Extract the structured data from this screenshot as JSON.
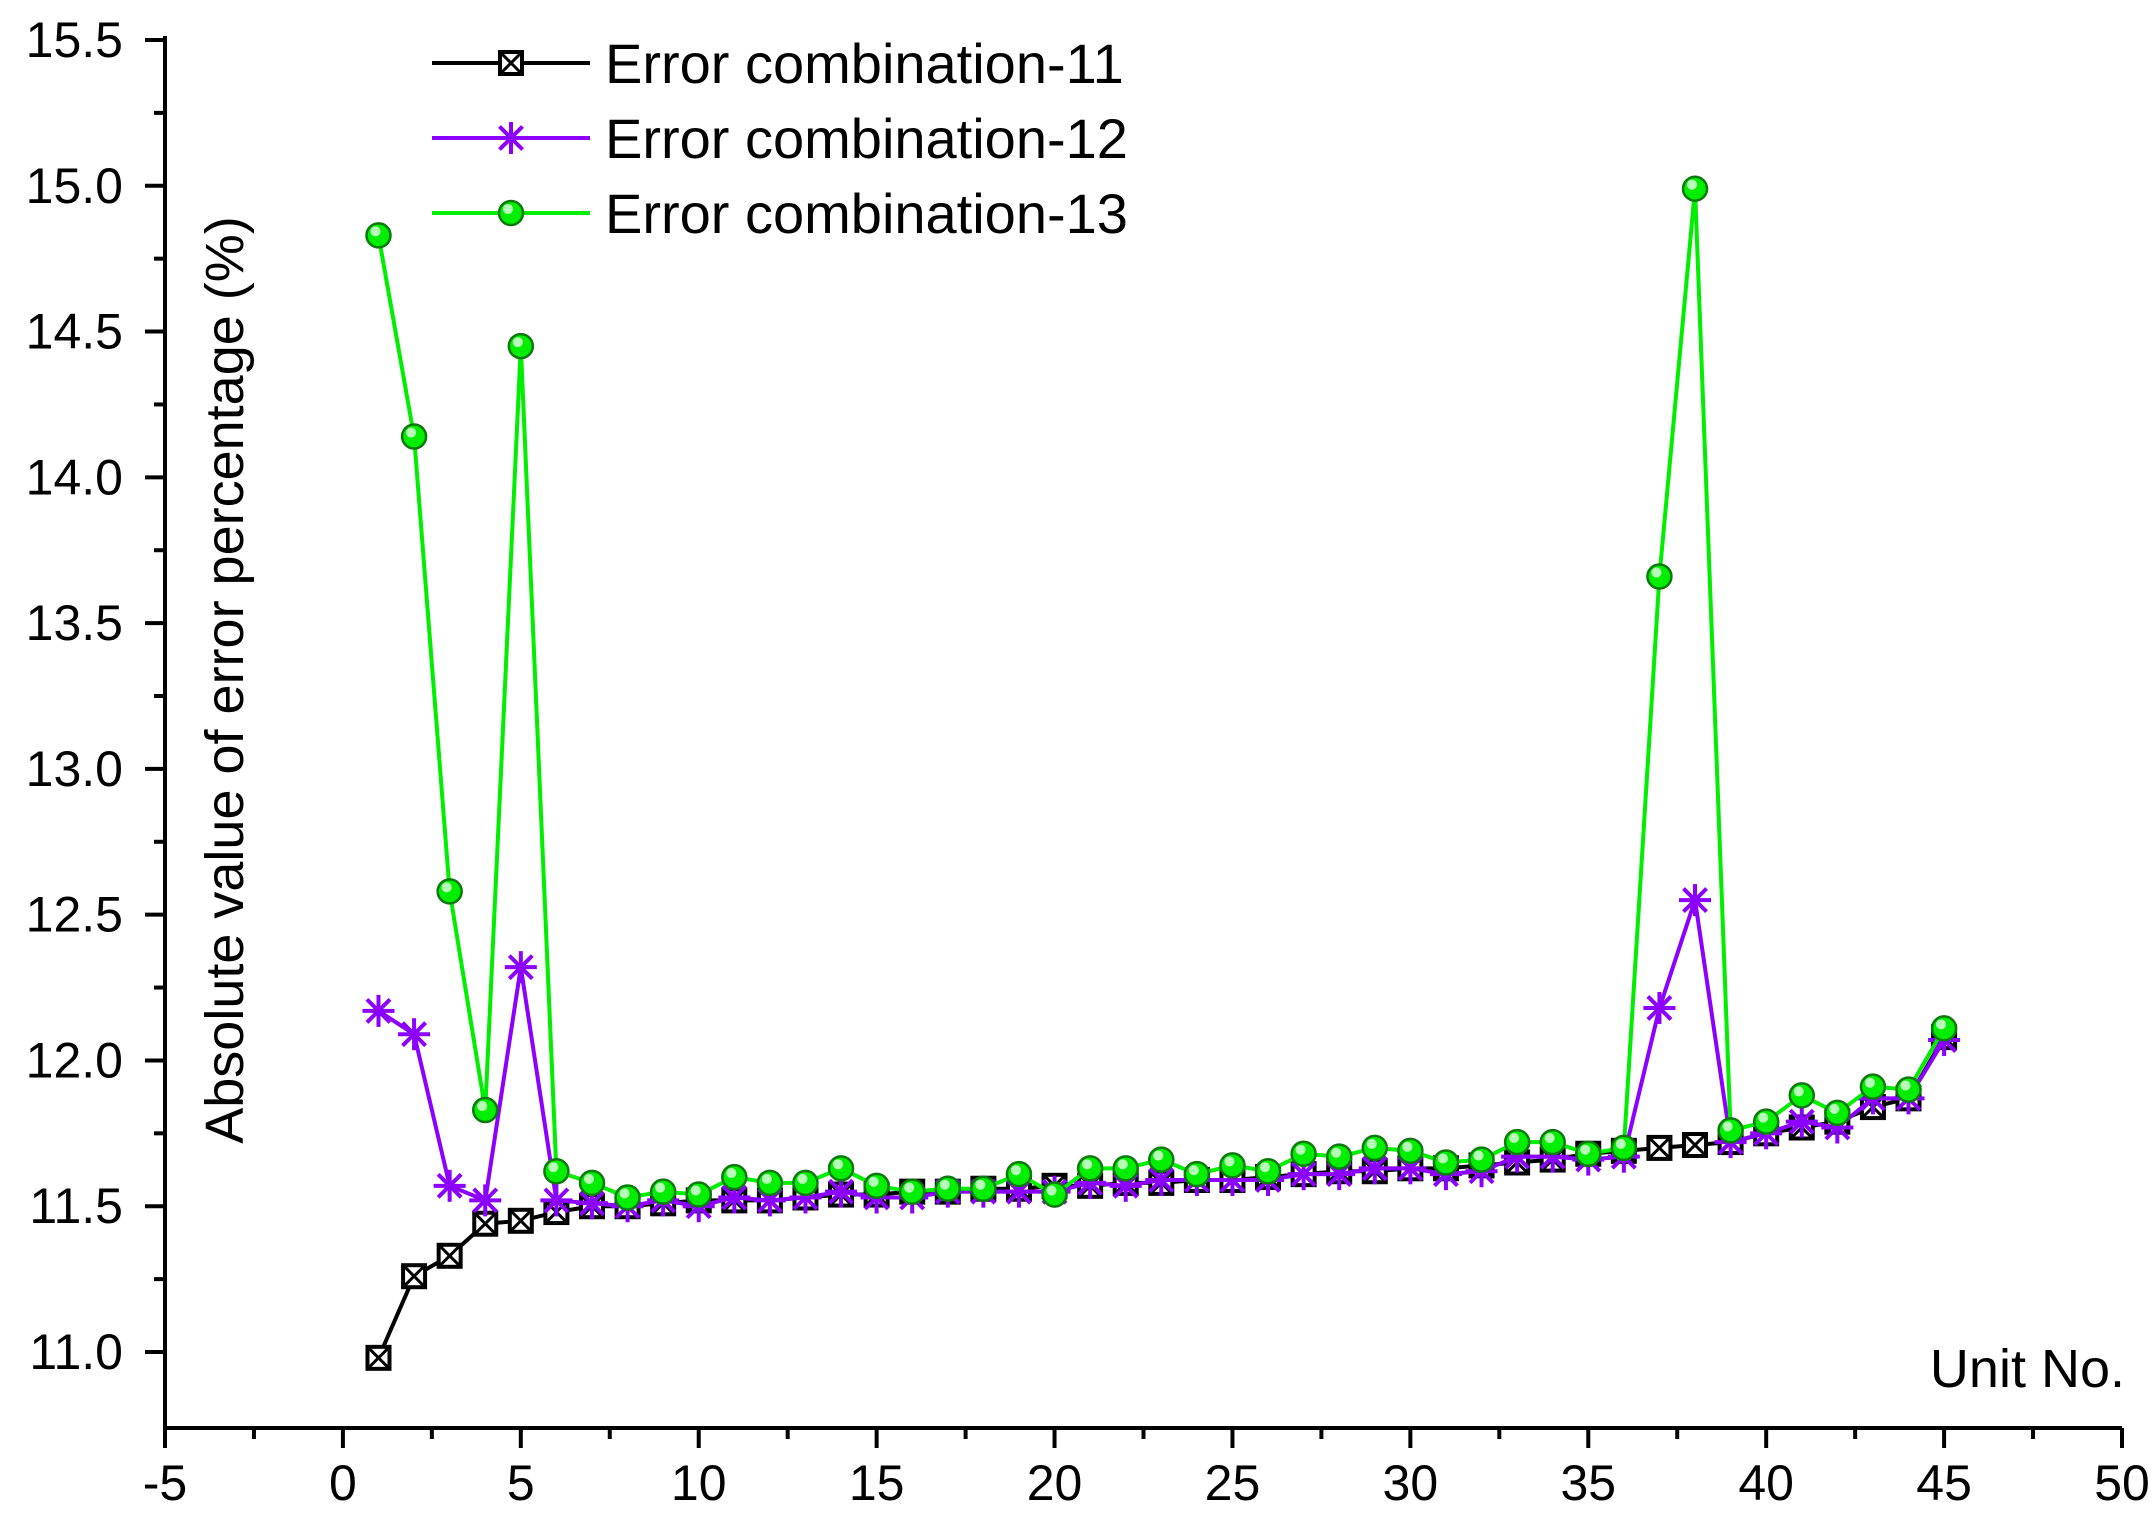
{
  "chart_data": {
    "type": "line",
    "title": "",
    "xlabel": "Unit No.",
    "ylabel": "Absolute value of error percentage (%)",
    "xlim": [
      -5,
      50
    ],
    "ylim": [
      11.0,
      15.5
    ],
    "x_ticks": [
      "-5",
      "0",
      "5",
      "10",
      "15",
      "20",
      "25",
      "30",
      "35",
      "40",
      "45",
      "50"
    ],
    "y_ticks": [
      "11.0",
      "11.5",
      "12.0",
      "12.5",
      "13.0",
      "13.5",
      "14.0",
      "14.5",
      "15.0",
      "15.5"
    ],
    "x": [
      1,
      2,
      3,
      4,
      5,
      6,
      7,
      8,
      9,
      10,
      11,
      12,
      13,
      14,
      15,
      16,
      17,
      18,
      19,
      20,
      21,
      22,
      23,
      24,
      25,
      26,
      27,
      28,
      29,
      30,
      31,
      32,
      33,
      34,
      35,
      36,
      37,
      38,
      39,
      40,
      41,
      42,
      43,
      44,
      45
    ],
    "legend_position": "top-left",
    "grid": false,
    "series": [
      {
        "name": "Error combination-11",
        "color": "#000000",
        "marker": "square-x",
        "values": [
          10.98,
          11.26,
          11.33,
          11.44,
          11.45,
          11.48,
          11.5,
          11.5,
          11.51,
          11.52,
          11.52,
          11.52,
          11.53,
          11.54,
          11.54,
          11.55,
          11.55,
          11.56,
          11.56,
          11.57,
          11.57,
          11.58,
          11.58,
          11.59,
          11.59,
          11.6,
          11.61,
          11.62,
          11.62,
          11.63,
          11.63,
          11.64,
          11.65,
          11.66,
          11.68,
          11.69,
          11.7,
          11.71,
          11.72,
          11.75,
          11.77,
          11.79,
          11.84,
          11.87,
          12.08
        ]
      },
      {
        "name": "Error combination-12",
        "color": "#8B00FF",
        "marker": "asterisk",
        "values": [
          12.17,
          12.09,
          11.57,
          11.52,
          12.32,
          11.52,
          11.51,
          11.5,
          11.52,
          11.5,
          11.53,
          11.52,
          11.53,
          11.55,
          11.53,
          11.53,
          11.55,
          11.55,
          11.55,
          11.55,
          11.58,
          11.57,
          11.59,
          11.59,
          11.59,
          11.59,
          11.61,
          11.61,
          11.63,
          11.63,
          11.61,
          11.62,
          11.67,
          11.67,
          11.66,
          11.67,
          12.18,
          12.55,
          11.72,
          11.75,
          11.79,
          11.77,
          11.87,
          11.87,
          12.07
        ]
      },
      {
        "name": "Error combination-13",
        "color": "#00EE00",
        "marker": "circle",
        "values": [
          14.83,
          14.14,
          12.58,
          11.83,
          14.45,
          11.62,
          11.58,
          11.53,
          11.55,
          11.54,
          11.6,
          11.58,
          11.58,
          11.63,
          11.57,
          11.55,
          11.56,
          11.56,
          11.61,
          11.54,
          11.63,
          11.63,
          11.66,
          11.61,
          11.64,
          11.62,
          11.68,
          11.67,
          11.7,
          11.69,
          11.65,
          11.66,
          11.72,
          11.72,
          11.68,
          11.7,
          13.66,
          14.99,
          11.76,
          11.79,
          11.88,
          11.82,
          11.91,
          11.9,
          12.11
        ]
      }
    ]
  }
}
